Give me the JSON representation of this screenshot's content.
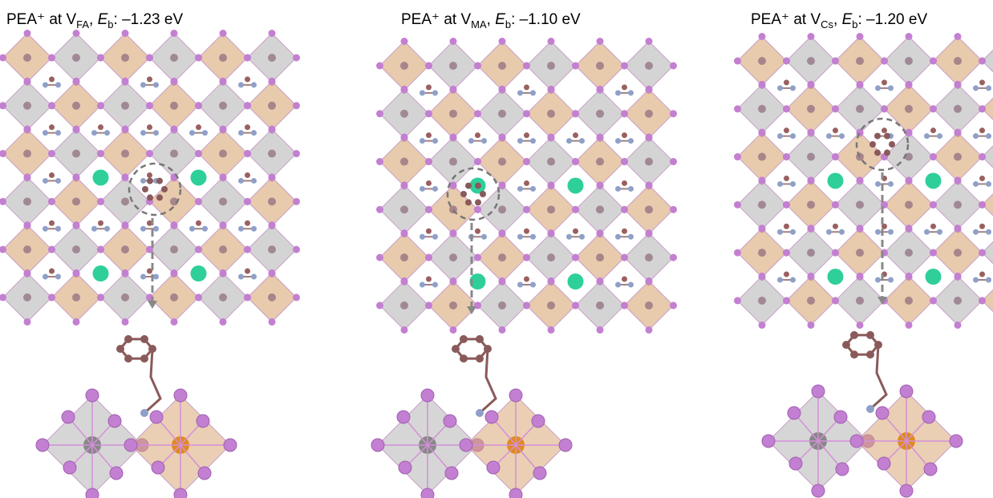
{
  "panels": [
    {
      "title_parts": [
        "PEA⁺ at V",
        "FA",
        ", ",
        "E",
        "b",
        ": –1.23 eV"
      ]
    },
    {
      "title_parts": [
        "PEA⁺ at V",
        "MA",
        ", ",
        "E",
        "b",
        ": –1.10 eV"
      ]
    },
    {
      "title_parts": [
        "PEA⁺ at V",
        "Cs",
        ", ",
        "E",
        "b",
        ": –1.20 eV"
      ]
    }
  ]
}
